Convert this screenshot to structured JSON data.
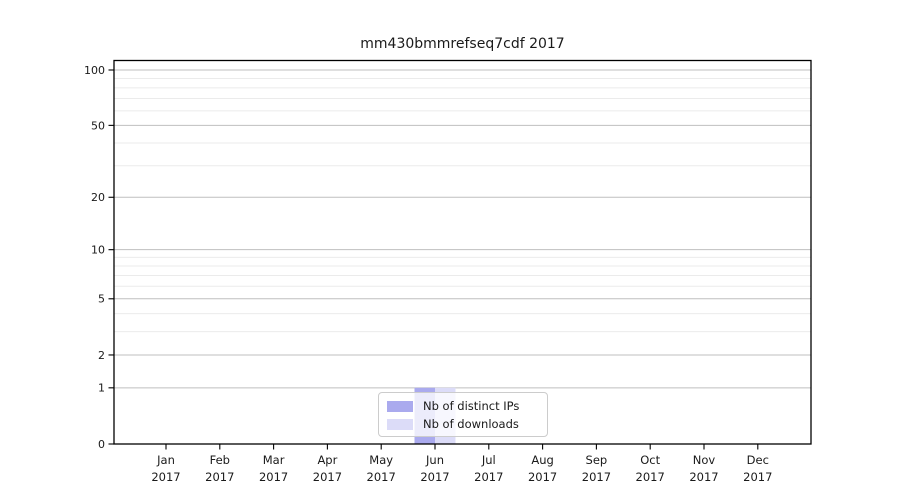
{
  "title": "mm430bmmrefseq7cdf 2017",
  "chart_data": {
    "type": "bar",
    "title": "mm430bmmrefseq7cdf 2017",
    "categories": [
      "Jan",
      "Feb",
      "Mar",
      "Apr",
      "May",
      "Jun",
      "Jul",
      "Aug",
      "Sep",
      "Oct",
      "Nov",
      "Dec"
    ],
    "year": "2017",
    "series": [
      {
        "name": "Nb of distinct IPs",
        "color": "#aaaaee",
        "values": [
          0,
          0,
          0,
          0,
          0,
          1,
          0,
          0,
          0,
          0,
          0,
          0
        ]
      },
      {
        "name": "Nb of downloads",
        "color": "#dcdcf8",
        "values": [
          0,
          0,
          0,
          0,
          0,
          1,
          0,
          0,
          0,
          0,
          0,
          0
        ]
      }
    ],
    "y_ticks": [
      0,
      1,
      2,
      5,
      10,
      20,
      50,
      100
    ],
    "y_minor_ticks": [
      3,
      4,
      6,
      7,
      8,
      9,
      30,
      40,
      60,
      70,
      80,
      90
    ],
    "scale": "log1p",
    "ylim": [
      0,
      110
    ],
    "xlabel": "",
    "ylabel": "",
    "grid": true,
    "legend_position": "bottom-center",
    "colors": {
      "major_gridline": "#bfbfbf",
      "minor_gridline": "#ebebeb",
      "axis": "#000000",
      "text": "#1a1a1a",
      "background": "#ffffff"
    }
  }
}
